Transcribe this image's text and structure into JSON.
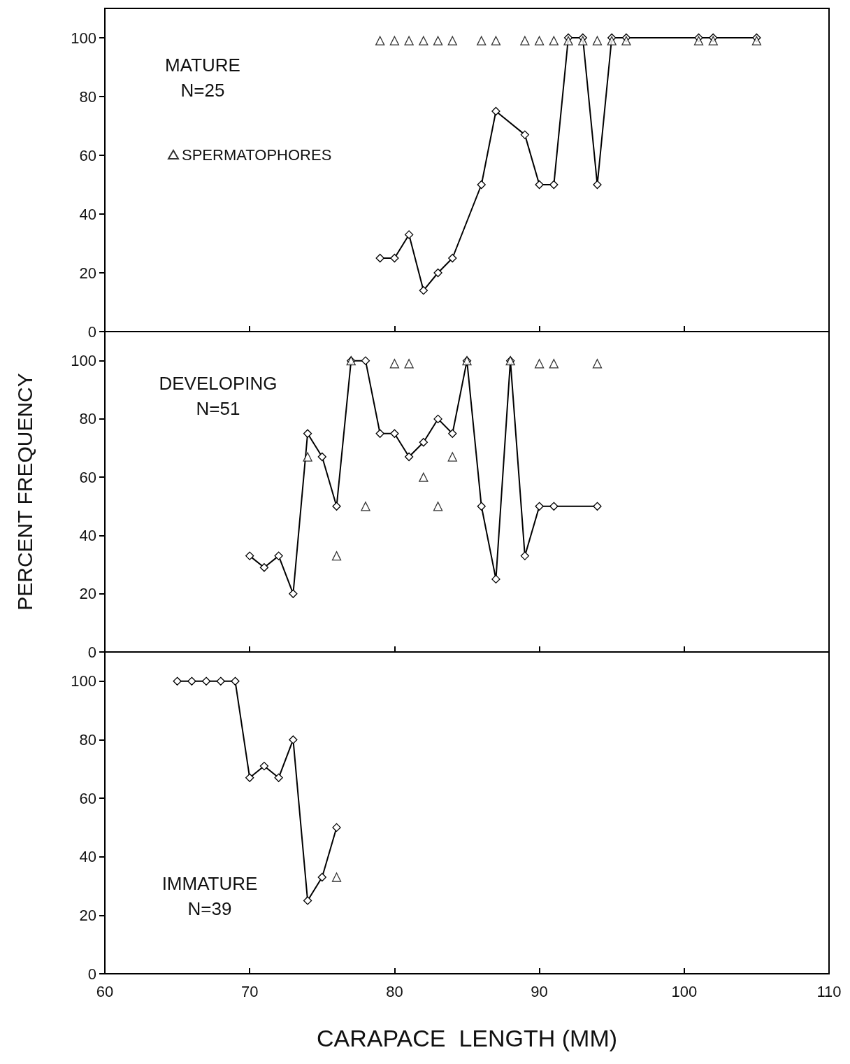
{
  "chart_data": [
    {
      "type": "line",
      "annotations": [
        "MATURE",
        "N=25"
      ],
      "legend": "top left",
      "tick_labels": "y",
      "grid": false,
      "xlim": [
        60,
        110
      ],
      "xticks": [
        60,
        70,
        80,
        90,
        100,
        110
      ],
      "ylim": [
        0,
        110
      ],
      "yticks": [
        0,
        20,
        40,
        60,
        80,
        100
      ],
      "series": [
        {
          "type": "line",
          "marker": "diamond",
          "color": "#000000",
          "x": [
            79,
            80,
            81,
            82,
            83,
            84,
            86,
            87,
            89,
            90,
            91,
            92,
            93,
            94,
            95,
            96,
            101,
            102,
            105
          ],
          "values": [
            25,
            25,
            33,
            14,
            20,
            25,
            50,
            75,
            67,
            50,
            50,
            100,
            100,
            50,
            100,
            100,
            100,
            100,
            100
          ]
        },
        {
          "type": "scatter",
          "marker": "triangle",
          "name": "SPERMATOPHORES",
          "color": "#000000",
          "x": [
            79,
            80,
            81,
            82,
            83,
            84,
            86,
            87,
            89,
            90,
            91,
            92,
            93,
            94,
            95,
            96,
            101,
            102,
            105
          ],
          "values": [
            99,
            99,
            99,
            99,
            99,
            99,
            99,
            99,
            99,
            99,
            99,
            99,
            99,
            99,
            99,
            99,
            99,
            99,
            99
          ]
        }
      ]
    },
    {
      "type": "line",
      "annotations": [
        "DEVELOPING",
        "N=51"
      ],
      "ylabel": "PERCENT FREQUENCY",
      "tick_labels": "y",
      "grid": false,
      "xlim": [
        60,
        110
      ],
      "xticks": [
        60,
        70,
        80,
        90,
        100,
        110
      ],
      "ylim": [
        0,
        110
      ],
      "yticks": [
        0,
        20,
        40,
        60,
        80,
        100
      ],
      "series": [
        {
          "type": "line",
          "marker": "diamond",
          "color": "#000000",
          "x": [
            70,
            71,
            72,
            73,
            74,
            75,
            76,
            77,
            78,
            79,
            80,
            81,
            82,
            83,
            84,
            85,
            86,
            87,
            88,
            89,
            90,
            91,
            94
          ],
          "values": [
            33,
            29,
            33,
            20,
            75,
            67,
            50,
            100,
            100,
            75,
            75,
            67,
            72,
            80,
            75,
            100,
            50,
            25,
            100,
            33,
            50,
            50,
            50
          ]
        },
        {
          "type": "scatter",
          "marker": "triangle",
          "color": "#000000",
          "x": [
            74,
            76,
            77,
            78,
            80,
            81,
            82,
            83,
            84,
            85,
            88,
            90,
            91,
            94
          ],
          "values": [
            67,
            33,
            100,
            50,
            99,
            99,
            60,
            50,
            67,
            100,
            100,
            99,
            99,
            99
          ]
        }
      ]
    },
    {
      "type": "line",
      "annotations": [
        "IMMATURE",
        "N=39"
      ],
      "xlabel": "CARAPACE  LENGTH (MM)",
      "grid": false,
      "xlim": [
        60,
        110
      ],
      "xticks": [
        60,
        70,
        80,
        90,
        100,
        110
      ],
      "ylim": [
        0,
        110
      ],
      "yticks": [
        0,
        20,
        40,
        60,
        80,
        100
      ],
      "series": [
        {
          "type": "line",
          "marker": "diamond",
          "color": "#000000",
          "x": [
            65,
            66,
            67,
            68,
            69,
            70,
            71,
            72,
            73,
            74,
            75,
            76
          ],
          "values": [
            100,
            100,
            100,
            100,
            100,
            67,
            71,
            67,
            80,
            25,
            33,
            50
          ]
        },
        {
          "type": "scatter",
          "marker": "triangle",
          "color": "#000000",
          "x": [
            76
          ],
          "values": [
            33
          ]
        }
      ]
    }
  ]
}
